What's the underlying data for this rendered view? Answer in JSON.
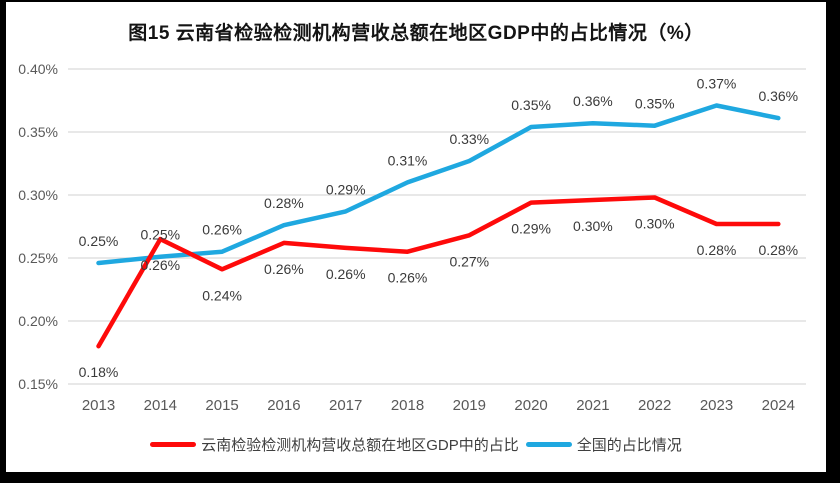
{
  "title": "图15 云南省检验检测机构营收总额在地区GDP中的占比情况（%）",
  "colors": {
    "yunnan_red": "#fe0a0a",
    "national_blue": "#1fa8e0",
    "gridline": "#d9d9d9",
    "axis_tick_text": "#595959",
    "data_label_text": "#3a3a3a",
    "frame_border": "#000000",
    "background": "#ffffff"
  },
  "chart_data": {
    "type": "line",
    "title": "图15 云南省检验检测机构营收总额在地区GDP中的占比情况（%）",
    "categories": [
      "2013",
      "2014",
      "2015",
      "2016",
      "2017",
      "2018",
      "2019",
      "2020",
      "2021",
      "2022",
      "2023",
      "2024"
    ],
    "series": [
      {
        "name": "云南检验检测机构营收总额在地区GDP中的占比",
        "color": "#fe0a0a",
        "label_position": "below",
        "values": [
          0.18,
          0.26,
          0.24,
          0.26,
          0.26,
          0.26,
          0.27,
          0.29,
          0.3,
          0.3,
          0.28,
          0.28
        ],
        "labels": [
          "0.18%",
          "0.26%",
          "0.24%",
          "0.26%",
          "0.26%",
          "0.26%",
          "0.27%",
          "0.29%",
          "0.30%",
          "0.30%",
          "0.28%",
          "0.28%"
        ],
        "plot_values": [
          0.18,
          0.265,
          0.241,
          0.262,
          0.258,
          0.255,
          0.268,
          0.294,
          0.296,
          0.298,
          0.277,
          0.277
        ]
      },
      {
        "name": "全国的占比情况",
        "color": "#1fa8e0",
        "label_position": "above",
        "values": [
          0.25,
          0.25,
          0.26,
          0.28,
          0.29,
          0.31,
          0.33,
          0.35,
          0.36,
          0.35,
          0.37,
          0.36
        ],
        "labels": [
          "0.25%",
          "0.25%",
          "0.26%",
          "0.28%",
          "0.29%",
          "0.31%",
          "0.33%",
          "0.35%",
          "0.36%",
          "0.35%",
          "0.37%",
          "0.36%"
        ],
        "plot_values": [
          0.246,
          0.251,
          0.255,
          0.276,
          0.287,
          0.31,
          0.327,
          0.354,
          0.357,
          0.355,
          0.371,
          0.361
        ]
      }
    ],
    "xlabel": "",
    "ylabel": "",
    "ylim": [
      0.15,
      0.4
    ],
    "yticks": [
      0.4,
      0.35,
      0.3,
      0.25,
      0.2,
      0.15
    ],
    "ytick_labels": [
      "0.40%",
      "0.35%",
      "0.30%",
      "0.25%",
      "0.20%",
      "0.15%"
    ],
    "grid": true,
    "legend_position": "bottom"
  },
  "legend": {
    "items": [
      {
        "label": "云南检验检测机构营收总额在地区GDP中的占比",
        "color": "#fe0a0a"
      },
      {
        "label": "全国的占比情况",
        "color": "#1fa8e0"
      }
    ]
  }
}
